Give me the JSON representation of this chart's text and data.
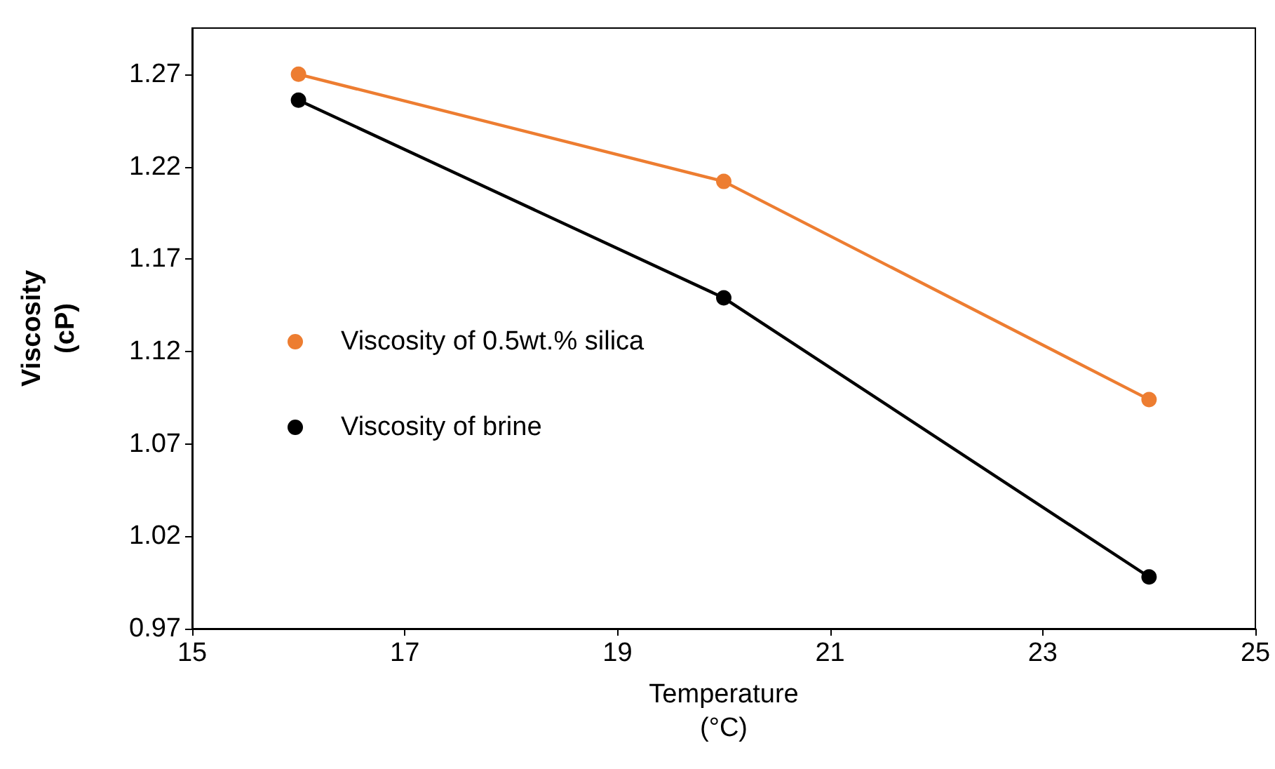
{
  "chart_data": {
    "type": "line",
    "xlabel": "Temperature\n(°C)",
    "ylabel": "Viscosity\n(cP)",
    "x": [
      16,
      20,
      24
    ],
    "series": [
      {
        "name": "Viscosity of 0.5wt.% silica",
        "color": "#ed7d31",
        "values": [
          1.27,
          1.212,
          1.094
        ]
      },
      {
        "name": "Viscosity of brine",
        "color": "#000000",
        "values": [
          1.256,
          1.149,
          0.998
        ]
      }
    ],
    "xlim": [
      15,
      25
    ],
    "xticks": [
      15,
      17,
      19,
      21,
      23,
      25
    ],
    "ylim": [
      0.97,
      1.295
    ],
    "yticks": [
      0.97,
      1.02,
      1.07,
      1.12,
      1.17,
      1.22,
      1.27
    ],
    "grid": false,
    "legend": "left",
    "marker": "circle",
    "line_style": "solid"
  }
}
